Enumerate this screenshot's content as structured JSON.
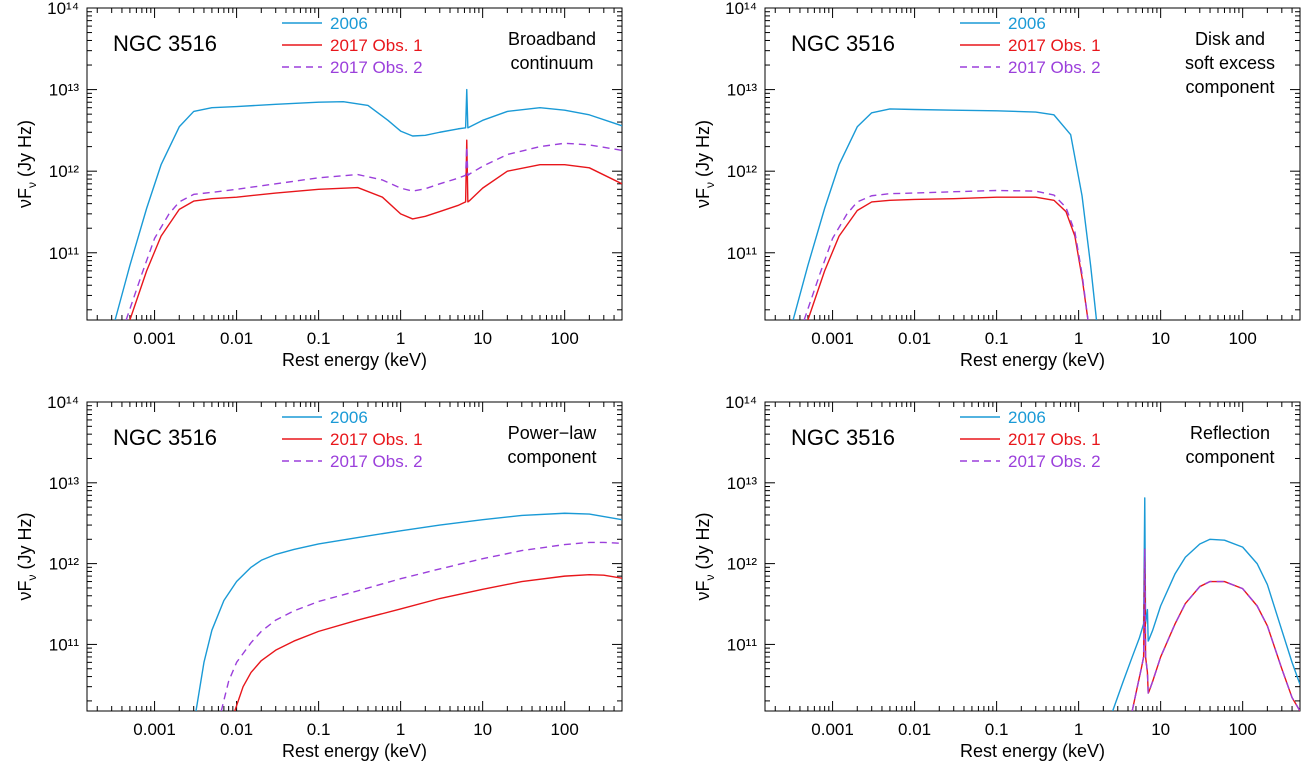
{
  "figure": {
    "xlabel": "Rest energy (keV)",
    "ylabel_main": "νF",
    "ylabel_sub": "ν",
    "ylabel_unit": " (Jy Hz)"
  },
  "colors": {
    "2006": "#1a9ad6",
    "2017 Obs. 1": "#e8161b",
    "2017 Obs. 2": "#9b3fdb"
  },
  "chart_data": [
    {
      "type": "line",
      "object_label": "NGC 3516",
      "panel_label": [
        "Broadband",
        "continuum"
      ],
      "xlabel": "Rest energy (keV)",
      "ylabel": "νFν (Jy Hz)",
      "xscale": "log",
      "yscale": "log",
      "xlim": [
        0.00015,
        500
      ],
      "ylim": [
        15000000000.0,
        100000000000000.0
      ],
      "xticks": [
        0.001,
        0.01,
        0.1,
        1,
        10,
        100
      ],
      "yticks": [
        100000000000.0,
        1000000000000.0,
        10000000000000.0,
        100000000000000.0
      ],
      "legend": "top-center",
      "series": [
        {
          "name": "2006",
          "style": "solid",
          "color": "#1a9ad6",
          "x": [
            0.00033,
            0.0005,
            0.0008,
            0.0012,
            0.002,
            0.003,
            0.005,
            0.01,
            0.03,
            0.1,
            0.2,
            0.4,
            0.7,
            1.0,
            1.4,
            2,
            3,
            5,
            6.2,
            6.4,
            6.6,
            7,
            10,
            20,
            50,
            100,
            200,
            500
          ],
          "y": [
            15000000000.0,
            70000000000.0,
            350000000000.0,
            1200000000000.0,
            3500000000000.0,
            5400000000000.0,
            6000000000000.0,
            6200000000000.0,
            6600000000000.0,
            7000000000000.0,
            7100000000000.0,
            6400000000000.0,
            4200000000000.0,
            3100000000000.0,
            2700000000000.0,
            2750000000000.0,
            3000000000000.0,
            3300000000000.0,
            3400000000000.0,
            10000000000000.0,
            3400000000000.0,
            3500000000000.0,
            4200000000000.0,
            5400000000000.0,
            6000000000000.0,
            5600000000000.0,
            4900000000000.0,
            3600000000000.0
          ]
        },
        {
          "name": "2017 Obs. 1",
          "style": "solid",
          "color": "#e8161b",
          "x": [
            0.0005,
            0.0008,
            0.0012,
            0.002,
            0.003,
            0.005,
            0.01,
            0.03,
            0.1,
            0.3,
            0.6,
            1.0,
            1.4,
            2,
            3,
            5,
            6.2,
            6.4,
            6.6,
            7,
            10,
            20,
            50,
            100,
            200,
            500
          ],
          "y": [
            15000000000.0,
            60000000000.0,
            160000000000.0,
            340000000000.0,
            430000000000.0,
            460000000000.0,
            480000000000.0,
            540000000000.0,
            600000000000.0,
            630000000000.0,
            480000000000.0,
            300000000000.0,
            260000000000.0,
            280000000000.0,
            320000000000.0,
            380000000000.0,
            420000000000.0,
            2400000000000.0,
            420000000000.0,
            440000000000.0,
            620000000000.0,
            1000000000000.0,
            1200000000000.0,
            1200000000000.0,
            1100000000000.0,
            700000000000.0
          ]
        },
        {
          "name": "2017 Obs. 2",
          "style": "dashed",
          "color": "#9b3fdb",
          "x": [
            0.00045,
            0.0007,
            0.001,
            0.0015,
            0.002,
            0.003,
            0.005,
            0.01,
            0.03,
            0.1,
            0.3,
            0.6,
            1.0,
            1.4,
            2,
            3,
            5,
            6.2,
            6.4,
            6.6,
            7,
            10,
            20,
            50,
            100,
            200,
            500
          ],
          "y": [
            15000000000.0,
            55000000000.0,
            150000000000.0,
            300000000000.0,
            420000000000.0,
            520000000000.0,
            550000000000.0,
            600000000000.0,
            700000000000.0,
            830000000000.0,
            910000000000.0,
            780000000000.0,
            620000000000.0,
            570000000000.0,
            610000000000.0,
            700000000000.0,
            820000000000.0,
            890000000000.0,
            2000000000000.0,
            890000000000.0,
            930000000000.0,
            1150000000000.0,
            1600000000000.0,
            2000000000000.0,
            2200000000000.0,
            2100000000000.0,
            1800000000000.0
          ]
        }
      ]
    },
    {
      "type": "line",
      "object_label": "NGC 3516",
      "panel_label": [
        "Disk and",
        "soft excess",
        "component"
      ],
      "xlabel": "Rest energy (keV)",
      "ylabel": "νFν (Jy Hz)",
      "xscale": "log",
      "yscale": "log",
      "xlim": [
        0.00015,
        500
      ],
      "ylim": [
        15000000000.0,
        100000000000000.0
      ],
      "xticks": [
        0.001,
        0.01,
        0.1,
        1,
        10,
        100
      ],
      "yticks": [
        100000000000.0,
        1000000000000.0,
        10000000000000.0,
        100000000000000.0
      ],
      "legend": "top-center",
      "series": [
        {
          "name": "2006",
          "style": "solid",
          "color": "#1a9ad6",
          "x": [
            0.00033,
            0.0005,
            0.0008,
            0.0012,
            0.002,
            0.003,
            0.005,
            0.01,
            0.03,
            0.1,
            0.3,
            0.5,
            0.8,
            1.1,
            1.4,
            1.65
          ],
          "y": [
            15000000000.0,
            70000000000.0,
            350000000000.0,
            1200000000000.0,
            3500000000000.0,
            5200000000000.0,
            5800000000000.0,
            5700000000000.0,
            5600000000000.0,
            5500000000000.0,
            5300000000000.0,
            4900000000000.0,
            2800000000000.0,
            500000000000.0,
            70000000000.0,
            15000000000.0
          ]
        },
        {
          "name": "2017 Obs. 1",
          "style": "solid",
          "color": "#e8161b",
          "x": [
            0.0005,
            0.0008,
            0.0012,
            0.002,
            0.003,
            0.005,
            0.01,
            0.03,
            0.1,
            0.3,
            0.5,
            0.7,
            0.9,
            1.1,
            1.3
          ],
          "y": [
            15000000000.0,
            60000000000.0,
            160000000000.0,
            330000000000.0,
            420000000000.0,
            440000000000.0,
            450000000000.0,
            460000000000.0,
            480000000000.0,
            480000000000.0,
            440000000000.0,
            320000000000.0,
            160000000000.0,
            50000000000.0,
            15000000000.0
          ]
        },
        {
          "name": "2017 Obs. 2",
          "style": "dashed",
          "color": "#9b3fdb",
          "x": [
            0.00045,
            0.0007,
            0.001,
            0.0015,
            0.002,
            0.003,
            0.005,
            0.01,
            0.03,
            0.1,
            0.3,
            0.5,
            0.7,
            0.9,
            1.1,
            1.3
          ],
          "y": [
            15000000000.0,
            55000000000.0,
            150000000000.0,
            300000000000.0,
            420000000000.0,
            500000000000.0,
            530000000000.0,
            540000000000.0,
            560000000000.0,
            580000000000.0,
            570000000000.0,
            510000000000.0,
            360000000000.0,
            180000000000.0,
            55000000000.0,
            15000000000.0
          ]
        }
      ]
    },
    {
      "type": "line",
      "object_label": "NGC 3516",
      "panel_label": [
        "Power−law",
        "component"
      ],
      "xlabel": "Rest energy (keV)",
      "ylabel": "νFν (Jy Hz)",
      "xscale": "log",
      "yscale": "log",
      "xlim": [
        0.00015,
        500
      ],
      "ylim": [
        15000000000.0,
        100000000000000.0
      ],
      "xticks": [
        0.001,
        0.01,
        0.1,
        1,
        10,
        100
      ],
      "yticks": [
        100000000000.0,
        1000000000000.0,
        10000000000000.0,
        100000000000000.0
      ],
      "legend": "top-center",
      "series": [
        {
          "name": "2006",
          "style": "solid",
          "color": "#1a9ad6",
          "x": [
            0.0032,
            0.004,
            0.005,
            0.007,
            0.01,
            0.015,
            0.02,
            0.03,
            0.05,
            0.1,
            0.3,
            1,
            3,
            10,
            30,
            100,
            200,
            500
          ],
          "y": [
            15000000000.0,
            60000000000.0,
            150000000000.0,
            350000000000.0,
            600000000000.0,
            900000000000.0,
            1100000000000.0,
            1300000000000.0,
            1500000000000.0,
            1750000000000.0,
            2100000000000.0,
            2550000000000.0,
            3000000000000.0,
            3500000000000.0,
            3950000000000.0,
            4200000000000.0,
            4100000000000.0,
            3500000000000.0
          ]
        },
        {
          "name": "2017 Obs. 1",
          "style": "solid",
          "color": "#e8161b",
          "x": [
            0.0095,
            0.012,
            0.015,
            0.02,
            0.03,
            0.05,
            0.1,
            0.3,
            1,
            3,
            10,
            30,
            100,
            200,
            300,
            500
          ],
          "y": [
            15000000000.0,
            30000000000.0,
            45000000000.0,
            63000000000.0,
            85000000000.0,
            110000000000.0,
            145000000000.0,
            200000000000.0,
            275000000000.0,
            370000000000.0,
            480000000000.0,
            600000000000.0,
            700000000000.0,
            730000000000.0,
            720000000000.0,
            660000000000.0
          ]
        },
        {
          "name": "2017 Obs. 2",
          "style": "dashed",
          "color": "#9b3fdb",
          "x": [
            0.0065,
            0.008,
            0.01,
            0.015,
            0.02,
            0.03,
            0.05,
            0.1,
            0.3,
            1,
            3,
            10,
            30,
            100,
            200,
            300,
            500
          ],
          "y": [
            15000000000.0,
            35000000000.0,
            60000000000.0,
            105000000000.0,
            145000000000.0,
            200000000000.0,
            260000000000.0,
            340000000000.0,
            460000000000.0,
            650000000000.0,
            860000000000.0,
            1150000000000.0,
            1450000000000.0,
            1720000000000.0,
            1830000000000.0,
            1830000000000.0,
            1780000000000.0
          ]
        }
      ]
    },
    {
      "type": "line",
      "object_label": "NGC 3516",
      "panel_label": [
        "Reflection",
        "component"
      ],
      "xlabel": "Rest energy (keV)",
      "ylabel": "νFν (Jy Hz)",
      "xscale": "log",
      "yscale": "log",
      "xlim": [
        0.00015,
        500
      ],
      "ylim": [
        15000000000.0,
        100000000000000.0
      ],
      "xticks": [
        0.001,
        0.01,
        0.1,
        1,
        10,
        100
      ],
      "yticks": [
        100000000000.0,
        1000000000000.0,
        10000000000000.0,
        100000000000000.0
      ],
      "legend": "top-center",
      "series": [
        {
          "name": "2006",
          "style": "solid",
          "color": "#1a9ad6",
          "x": [
            2.6,
            3.5,
            4.5,
            5.5,
            6.2,
            6.4,
            6.55,
            6.9,
            7.05,
            7.2,
            8,
            10,
            15,
            20,
            30,
            40,
            60,
            100,
            150,
            200,
            300,
            400,
            500
          ],
          "y": [
            15000000000.0,
            35000000000.0,
            70000000000.0,
            120000000000.0,
            180000000000.0,
            6500000000000.0,
            180000000000.0,
            270000000000.0,
            110000000000.0,
            115000000000.0,
            150000000000.0,
            300000000000.0,
            750000000000.0,
            1200000000000.0,
            1750000000000.0,
            2000000000000.0,
            1950000000000.0,
            1600000000000.0,
            1000000000000.0,
            550000000000.0,
            150000000000.0,
            60000000000.0,
            32000000000.0
          ]
        },
        {
          "name": "2017 Obs. 1",
          "style": "solid",
          "color": "#e8161b",
          "x": [
            4.5,
            5.2,
            5.8,
            6.2,
            6.4,
            6.55,
            6.9,
            7.05,
            7.2,
            8,
            10,
            15,
            20,
            30,
            40,
            60,
            100,
            150,
            200,
            300,
            400,
            500
          ],
          "y": [
            15000000000.0,
            30000000000.0,
            50000000000.0,
            70000000000.0,
            1500000000000.0,
            70000000000.0,
            45000000000.0,
            25000000000.0,
            26000000000.0,
            35000000000.0,
            70000000000.0,
            180000000000.0,
            320000000000.0,
            520000000000.0,
            600000000000.0,
            600000000000.0,
            490000000000.0,
            300000000000.0,
            170000000000.0,
            50000000000.0,
            22000000000.0,
            15000000000.0
          ]
        },
        {
          "name": "2017 Obs. 2",
          "style": "dashed",
          "color": "#9b3fdb",
          "x": [
            4.5,
            5.2,
            5.8,
            6.2,
            6.4,
            6.55,
            6.9,
            7.05,
            7.2,
            8,
            10,
            15,
            20,
            30,
            40,
            60,
            100,
            150,
            200,
            300,
            400,
            500
          ],
          "y": [
            15000000000.0,
            30000000000.0,
            50000000000.0,
            70000000000.0,
            1500000000000.0,
            70000000000.0,
            45000000000.0,
            25000000000.0,
            26000000000.0,
            35000000000.0,
            70000000000.0,
            180000000000.0,
            320000000000.0,
            520000000000.0,
            600000000000.0,
            600000000000.0,
            490000000000.0,
            300000000000.0,
            170000000000.0,
            50000000000.0,
            22000000000.0,
            15000000000.0
          ]
        }
      ]
    }
  ]
}
